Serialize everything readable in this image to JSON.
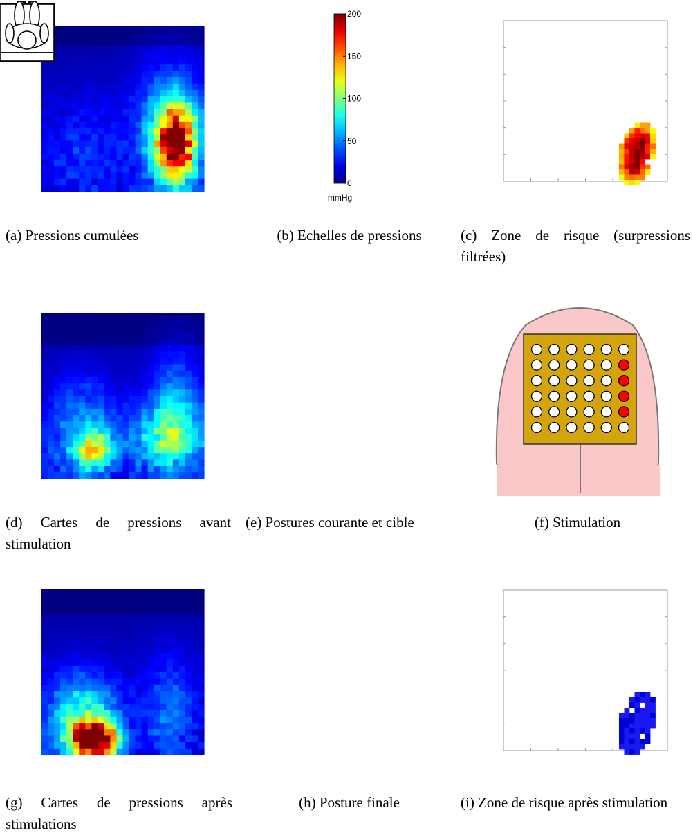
{
  "colorbar": {
    "lim": [
      0,
      200
    ],
    "ticks": [
      0,
      50,
      100,
      150,
      200
    ],
    "unit": "mmHg"
  },
  "captions": {
    "a": "(a) Pressions cumulées",
    "b": "(b) Echelles de pressions",
    "c": "(c) Zone de risque (surpressions filtrées)",
    "d": "(d) Cartes de pressions avant stimulation",
    "e": "(e) Postures courante et cible",
    "f": "(f) Stimulation",
    "g": "(g) Cartes de pressions après stimulations",
    "h": "(h) Posture finale",
    "i": "(i) Zone de risque après stimulation"
  }
}
